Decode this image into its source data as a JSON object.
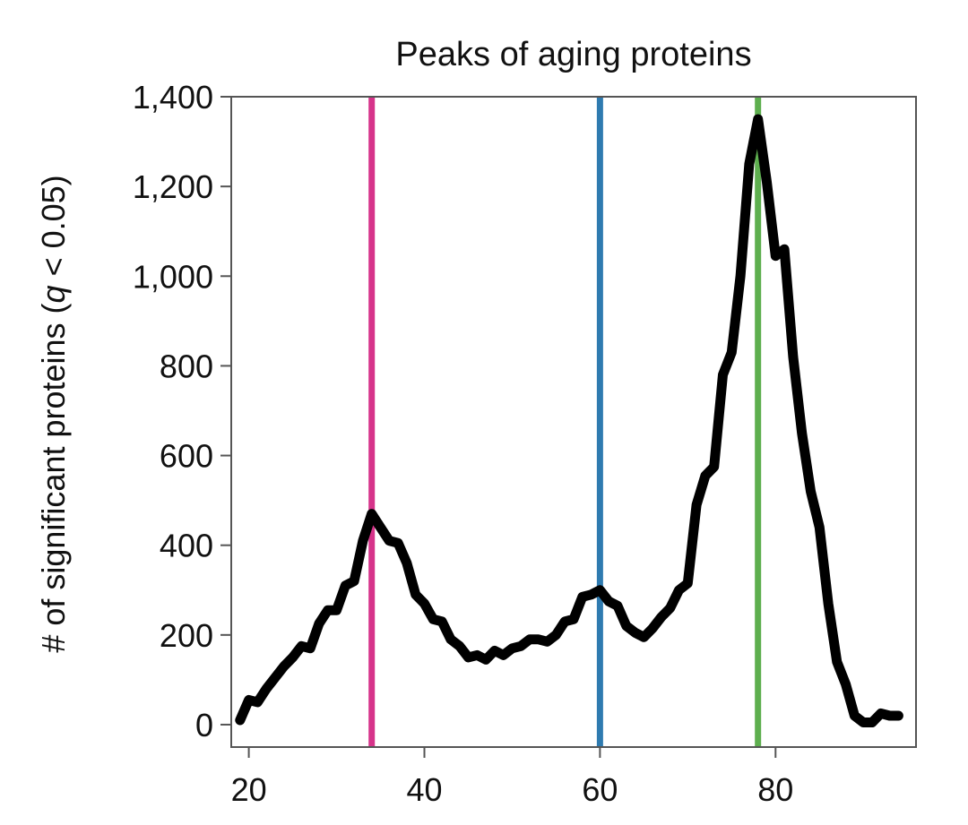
{
  "chart_data": {
    "type": "line",
    "title": "Peaks of aging proteins",
    "xlabel": "",
    "ylabel_prefix": "# of significant proteins (",
    "ylabel_var": "q",
    "ylabel_suffix": " < 0.05)",
    "xlim": [
      18,
      96
    ],
    "ylim": [
      -50,
      1400
    ],
    "xticks": [
      20,
      40,
      60,
      80
    ],
    "xtick_labels": [
      "20",
      "40",
      "60",
      "80"
    ],
    "yticks": [
      0,
      200,
      400,
      600,
      800,
      1000,
      1200,
      1400
    ],
    "ytick_labels": [
      "0",
      "200",
      "400",
      "600",
      "800",
      "1,000",
      "1,200",
      "1,400"
    ],
    "series": [
      {
        "name": "significant proteins",
        "color": "#000000",
        "x": [
          19,
          20,
          21,
          22,
          23,
          24,
          25,
          26,
          27,
          28,
          29,
          30,
          31,
          32,
          33,
          34,
          35,
          36,
          37,
          38,
          39,
          40,
          41,
          42,
          43,
          44,
          45,
          46,
          47,
          48,
          49,
          50,
          51,
          52,
          53,
          54,
          55,
          56,
          57,
          58,
          59,
          60,
          61,
          62,
          63,
          64,
          65,
          66,
          67,
          68,
          69,
          70,
          71,
          72,
          73,
          74,
          75,
          76,
          77,
          78,
          79,
          80,
          81,
          82,
          83,
          84,
          85,
          86,
          87,
          88,
          89,
          90,
          91,
          92,
          93,
          94
        ],
        "y": [
          10,
          55,
          50,
          80,
          105,
          130,
          150,
          175,
          170,
          225,
          255,
          255,
          310,
          320,
          410,
          470,
          440,
          410,
          405,
          360,
          290,
          270,
          235,
          230,
          190,
          175,
          150,
          155,
          145,
          165,
          155,
          170,
          175,
          190,
          190,
          185,
          200,
          230,
          235,
          285,
          290,
          300,
          275,
          265,
          220,
          205,
          195,
          215,
          240,
          260,
          300,
          315,
          490,
          555,
          575,
          780,
          830,
          1000,
          1250,
          1350,
          1210,
          1045,
          1060,
          820,
          650,
          520,
          440,
          270,
          140,
          90,
          20,
          5,
          5,
          25,
          20,
          20
        ]
      }
    ],
    "vlines": [
      {
        "x": 34,
        "color": "#d6338a"
      },
      {
        "x": 60,
        "color": "#2f7bb0"
      },
      {
        "x": 78,
        "color": "#5eaf4f"
      }
    ]
  }
}
